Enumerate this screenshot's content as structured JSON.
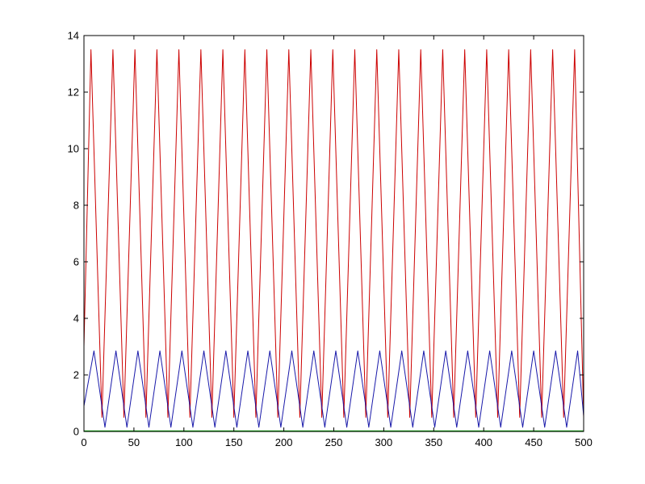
{
  "chart_data": {
    "type": "line",
    "title": "",
    "xlabel": "",
    "ylabel": "",
    "xlim": [
      0,
      500
    ],
    "ylim": [
      0,
      14
    ],
    "grid": false,
    "x_ticks": [
      0,
      50,
      100,
      150,
      200,
      250,
      300,
      350,
      400,
      450,
      500
    ],
    "y_ticks": [
      0,
      2,
      4,
      6,
      8,
      10,
      12,
      14
    ],
    "x_tick_labels": [
      "0",
      "50",
      "100",
      "150",
      "200",
      "250",
      "300",
      "350",
      "400",
      "450",
      "500"
    ],
    "y_tick_labels": [
      "0",
      "2",
      "4",
      "6",
      "8",
      "10",
      "12",
      "14"
    ],
    "series": [
      {
        "color": "#cc0000",
        "x": [
          0,
          7,
          18,
          29,
          40,
          51,
          62,
          73,
          84,
          95,
          106,
          117,
          128,
          139,
          150,
          161,
          172,
          183,
          194,
          205,
          216,
          227,
          238,
          249,
          260,
          271,
          282,
          293,
          304,
          315,
          326,
          337,
          348,
          359,
          370,
          381,
          392,
          403,
          414,
          425,
          436,
          447,
          458,
          469,
          480,
          491,
          500
        ],
        "values": [
          3.0,
          13.5,
          0.5,
          13.5,
          0.5,
          13.5,
          0.5,
          13.5,
          0.5,
          13.5,
          0.5,
          13.5,
          0.5,
          13.5,
          0.5,
          13.5,
          0.5,
          13.5,
          0.5,
          13.5,
          0.5,
          13.5,
          0.5,
          13.5,
          0.5,
          13.5,
          0.5,
          13.5,
          0.5,
          13.5,
          0.5,
          13.5,
          0.5,
          13.5,
          0.5,
          13.5,
          0.5,
          13.5,
          0.5,
          13.5,
          0.5,
          13.5,
          0.5,
          13.5,
          0.5,
          13.5,
          0.5
        ]
      },
      {
        "color": "#1a1aaa",
        "x": [
          0,
          10,
          21,
          32,
          43,
          54,
          65,
          76,
          87,
          98,
          109,
          120,
          131,
          142,
          153,
          164,
          175,
          186,
          197,
          208,
          219,
          230,
          241,
          252,
          263,
          274,
          285,
          296,
          307,
          318,
          329,
          340,
          351,
          362,
          373,
          384,
          395,
          406,
          417,
          428,
          439,
          450,
          461,
          472,
          483,
          494,
          500
        ],
        "values": [
          0.9,
          2.85,
          0.15,
          2.85,
          0.15,
          2.85,
          0.15,
          2.85,
          0.15,
          2.85,
          0.15,
          2.85,
          0.15,
          2.85,
          0.15,
          2.85,
          0.15,
          2.85,
          0.15,
          2.85,
          0.15,
          2.85,
          0.15,
          2.85,
          0.15,
          2.85,
          0.15,
          2.85,
          0.15,
          2.85,
          0.15,
          2.85,
          0.15,
          2.85,
          0.15,
          2.85,
          0.15,
          2.85,
          0.15,
          2.85,
          0.15,
          2.85,
          0.15,
          2.85,
          0.15,
          2.85,
          0.55
        ]
      },
      {
        "color": "#00aa00",
        "x": [
          0,
          500
        ],
        "values": [
          0.02,
          0.02
        ]
      }
    ]
  }
}
